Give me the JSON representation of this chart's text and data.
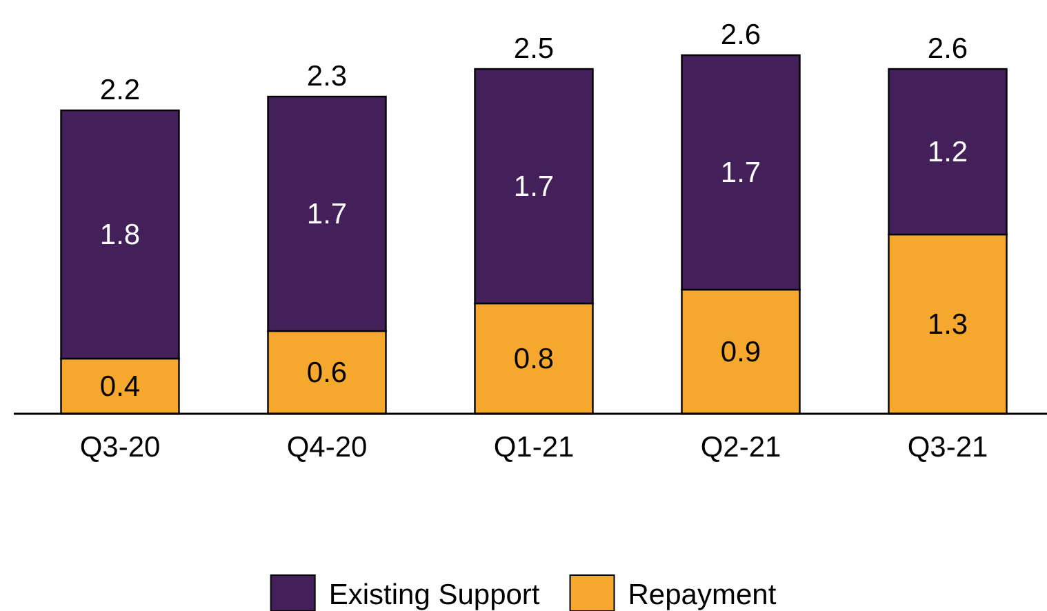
{
  "chart_data": {
    "type": "bar",
    "stacked": true,
    "categories": [
      "Q3-20",
      "Q4-20",
      "Q1-21",
      "Q2-21",
      "Q3-21"
    ],
    "series": [
      {
        "name": "Repayment",
        "color": "#f6a72d",
        "values": [
          0.4,
          0.6,
          0.8,
          0.9,
          1.3
        ]
      },
      {
        "name": "Existing Support",
        "color": "#44205a",
        "values": [
          1.8,
          1.7,
          1.7,
          1.7,
          1.2
        ]
      }
    ],
    "totals": [
      "2.2",
      "2.3",
      "2.5",
      "2.6",
      "2.6"
    ],
    "data_labels": true,
    "legend": "bottom"
  }
}
